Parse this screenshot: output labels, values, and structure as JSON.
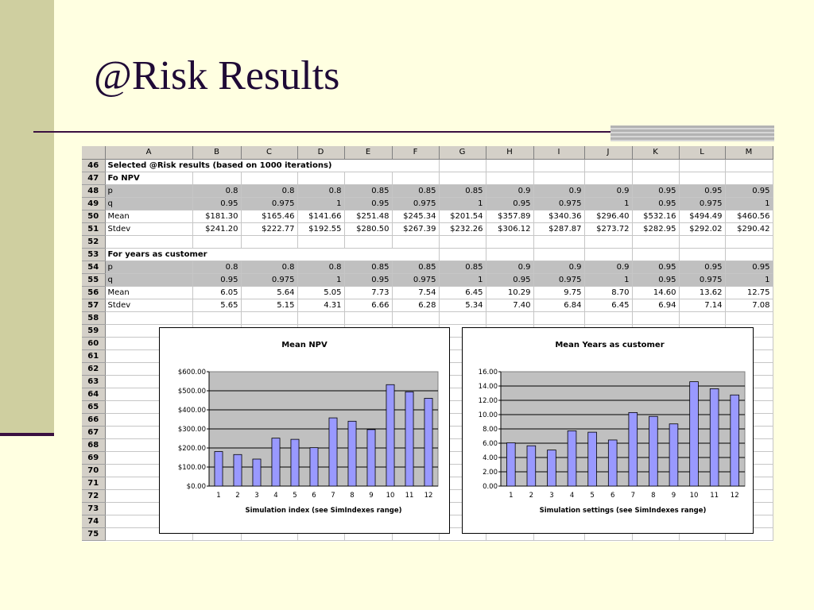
{
  "slide": {
    "title": "@Risk Results"
  },
  "sheet": {
    "columns": [
      "",
      "A",
      "B",
      "C",
      "D",
      "E",
      "F",
      "G",
      "H",
      "I",
      "J",
      "K",
      "L",
      "M"
    ],
    "rows": [
      {
        "n": "46",
        "label": "Selected @Risk results (based on 1000 iterations)",
        "style": "bold",
        "span": true,
        "cells": []
      },
      {
        "n": "47",
        "label": "Fo NPV",
        "style": "bold",
        "cells": []
      },
      {
        "n": "48",
        "label": "p",
        "style": "shade",
        "cells": [
          "0.8",
          "0.8",
          "0.8",
          "0.85",
          "0.85",
          "0.85",
          "0.9",
          "0.9",
          "0.9",
          "0.95",
          "0.95",
          "0.95"
        ]
      },
      {
        "n": "49",
        "label": "q",
        "style": "shade",
        "cells": [
          "0.95",
          "0.975",
          "1",
          "0.95",
          "0.975",
          "1",
          "0.95",
          "0.975",
          "1",
          "0.95",
          "0.975",
          "1"
        ]
      },
      {
        "n": "50",
        "label": "Mean",
        "style": "",
        "cells": [
          "$181.30",
          "$165.46",
          "$141.66",
          "$251.48",
          "$245.34",
          "$201.54",
          "$357.89",
          "$340.36",
          "$296.40",
          "$532.16",
          "$494.49",
          "$460.56"
        ]
      },
      {
        "n": "51",
        "label": "Stdev",
        "style": "",
        "cells": [
          "$241.20",
          "$222.77",
          "$192.55",
          "$280.50",
          "$267.39",
          "$232.26",
          "$306.12",
          "$287.87",
          "$273.72",
          "$282.95",
          "$292.02",
          "$290.42"
        ]
      },
      {
        "n": "52",
        "label": "",
        "style": "",
        "cells": []
      },
      {
        "n": "53",
        "label": "For years as customer",
        "style": "bold",
        "span": true,
        "cells": []
      },
      {
        "n": "54",
        "label": "p",
        "style": "shade",
        "cells": [
          "0.8",
          "0.8",
          "0.8",
          "0.85",
          "0.85",
          "0.85",
          "0.9",
          "0.9",
          "0.9",
          "0.95",
          "0.95",
          "0.95"
        ]
      },
      {
        "n": "55",
        "label": "q",
        "style": "shade",
        "cells": [
          "0.95",
          "0.975",
          "1",
          "0.95",
          "0.975",
          "1",
          "0.95",
          "0.975",
          "1",
          "0.95",
          "0.975",
          "1"
        ]
      },
      {
        "n": "56",
        "label": "Mean",
        "style": "",
        "cells": [
          "6.05",
          "5.64",
          "5.05",
          "7.73",
          "7.54",
          "6.45",
          "10.29",
          "9.75",
          "8.70",
          "14.60",
          "13.62",
          "12.75"
        ]
      },
      {
        "n": "57",
        "label": "Stdev",
        "style": "",
        "cells": [
          "5.65",
          "5.15",
          "4.31",
          "6.66",
          "6.28",
          "5.34",
          "7.40",
          "6.84",
          "6.45",
          "6.94",
          "7.14",
          "7.08"
        ]
      },
      {
        "n": "58",
        "label": "",
        "style": "",
        "cells": []
      },
      {
        "n": "59",
        "label": "",
        "style": "",
        "cells": []
      },
      {
        "n": "60",
        "label": "",
        "style": "",
        "cells": []
      },
      {
        "n": "61",
        "label": "",
        "style": "",
        "cells": []
      },
      {
        "n": "62",
        "label": "",
        "style": "",
        "cells": []
      },
      {
        "n": "63",
        "label": "",
        "style": "",
        "cells": []
      },
      {
        "n": "64",
        "label": "",
        "style": "",
        "cells": []
      },
      {
        "n": "65",
        "label": "",
        "style": "",
        "cells": []
      },
      {
        "n": "66",
        "label": "",
        "style": "",
        "cells": []
      },
      {
        "n": "67",
        "label": "",
        "style": "",
        "cells": []
      },
      {
        "n": "68",
        "label": "",
        "style": "",
        "cells": []
      },
      {
        "n": "69",
        "label": "",
        "style": "",
        "cells": []
      },
      {
        "n": "70",
        "label": "",
        "style": "",
        "cells": []
      },
      {
        "n": "71",
        "label": "",
        "style": "",
        "cells": []
      },
      {
        "n": "72",
        "label": "",
        "style": "",
        "cells": []
      },
      {
        "n": "73",
        "label": "",
        "style": "",
        "cells": []
      },
      {
        "n": "74",
        "label": "",
        "style": "",
        "cells": []
      },
      {
        "n": "75",
        "label": "",
        "style": "",
        "cells": []
      }
    ]
  },
  "colors": {
    "bar_fill": "#9999ff",
    "plot_bg": "#c0c0c0",
    "header_gray": "#d4d0c8"
  },
  "chart_data": [
    {
      "type": "bar",
      "title": "Mean NPV",
      "xlabel": "Simulation index (see SimIndexes range)",
      "ylabel": "",
      "categories": [
        "1",
        "2",
        "3",
        "4",
        "5",
        "6",
        "7",
        "8",
        "9",
        "10",
        "11",
        "12"
      ],
      "values": [
        181.3,
        165.46,
        141.66,
        251.48,
        245.34,
        201.54,
        357.89,
        340.36,
        296.4,
        532.16,
        494.49,
        460.56
      ],
      "ylim": [
        0,
        600
      ],
      "yticks": [
        "$0.00",
        "$100.00",
        "$200.00",
        "$300.00",
        "$400.00",
        "$500.00",
        "$600.00"
      ],
      "grid": true,
      "legend": "none"
    },
    {
      "type": "bar",
      "title": "Mean Years as customer",
      "xlabel": "Simulation settings (see SimIndexes range)",
      "ylabel": "",
      "categories": [
        "1",
        "2",
        "3",
        "4",
        "5",
        "6",
        "7",
        "8",
        "9",
        "10",
        "11",
        "12"
      ],
      "values": [
        6.05,
        5.64,
        5.05,
        7.73,
        7.54,
        6.45,
        10.29,
        9.75,
        8.7,
        14.6,
        13.62,
        12.75
      ],
      "ylim": [
        0,
        16
      ],
      "yticks": [
        "0.00",
        "2.00",
        "4.00",
        "6.00",
        "8.00",
        "10.00",
        "12.00",
        "14.00",
        "16.00"
      ],
      "grid": true,
      "legend": "none"
    }
  ]
}
